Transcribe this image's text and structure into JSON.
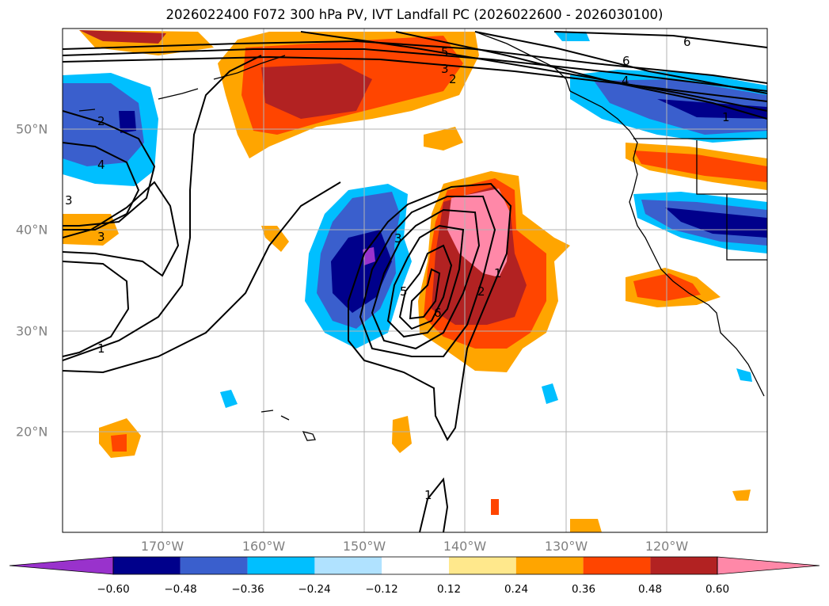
{
  "title": "2026022400 F072 300 hPa PV, IVT Landfall PC (2026022600 - 2026030100)",
  "lon_labels": [
    "170°W",
    "160°W",
    "150°W",
    "140°W",
    "130°W",
    "120°W"
  ],
  "lat_labels": [
    "50°N",
    "40°N",
    "30°N",
    "20°N"
  ],
  "colorbar": {
    "ticks": [
      "−0.60",
      "−0.48",
      "−0.36",
      "−0.24",
      "−0.12",
      "0.12",
      "0.24",
      "0.36",
      "0.48",
      "0.60"
    ],
    "colors": [
      "#9932cc",
      "#00008b",
      "#3a5fcd",
      "#00bfff",
      "#b0e2ff",
      "#ffffff",
      "#ffe88c",
      "#ffa500",
      "#ff4500",
      "#b22222",
      "#ff88a8"
    ]
  },
  "contour_labels": [
    "5",
    "3",
    "2",
    "6",
    "6",
    "4",
    "1",
    "2",
    "4",
    "3",
    "3",
    "1",
    "3",
    "5",
    "6",
    "2",
    "1",
    "1"
  ]
}
